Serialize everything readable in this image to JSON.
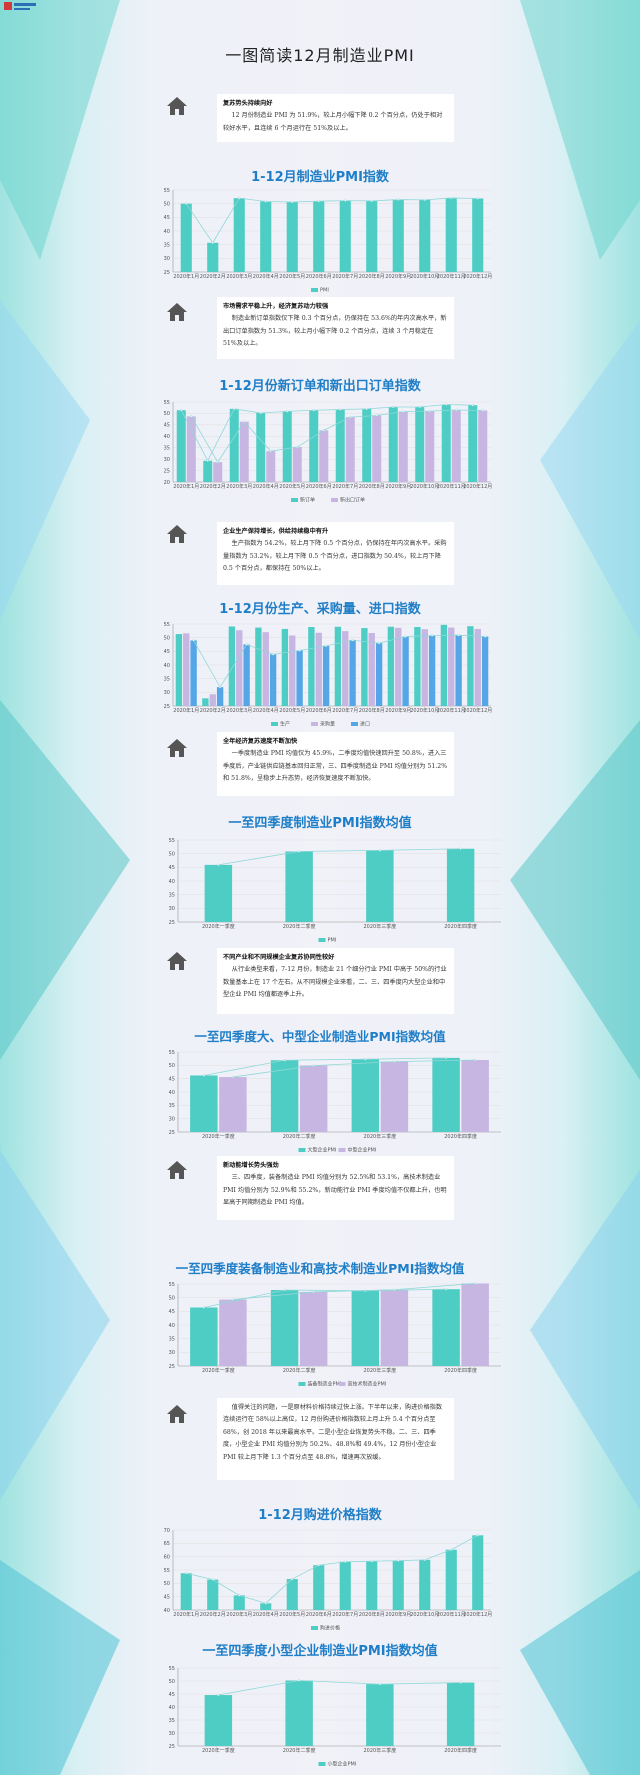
{
  "page_title": "一图简读12月制造业PMI",
  "colors": {
    "teal": "#4ecdc4",
    "lavender": "#c7b5e2",
    "blue": "#55a6e6",
    "title_blue": "#1f7ec8",
    "line": "#8fd8d8"
  },
  "notes": [
    {
      "heading": "复苏势头持续向好",
      "paragraphs": [
        "12 月份制造业 PMI 为 51.9%，较上月小幅下降 0.2 个百分点，仍处于相对较好水平，且连续 6 个月运行在 51%及以上。"
      ]
    },
    {
      "heading": "市场需求平稳上升，经济复苏动力较强",
      "paragraphs": [
        "制造业新订单指数仅下降 0.3 个百分点，仍保持在 53.6%的年内次高水平，新出口订单指数为 51.3%，较上月小幅下降 0.2 个百分点，连续 3 个月稳定在 51%及以上。"
      ]
    },
    {
      "heading": "企业生产保持增长，供给持续稳中有升",
      "paragraphs": [
        "生产指数为 54.2%，较上月下降 0.5 个百分点，仍保持在年内次高水平。采购量指数为 53.2%，较上月下降 0.5 个百分点，进口指数为 50.4%，较上月下降 0.5 个百分点，都保持在 50%以上。"
      ]
    },
    {
      "heading": "全年经济复苏速度不断加快",
      "paragraphs": [
        "一季度制造业 PMI 均值仅为 45.9%，二季度均值快速回升至 50.8%，进入三季度后，产业链供应链基本回归正常，三、四季度制造业 PMI 均值分别为 51.2%和 51.8%，呈稳步上升态势，经济恢复速度不断加快。"
      ]
    },
    {
      "heading": "不同产业和不同规模企业复苏协同性较好",
      "paragraphs": [
        "从行业类型来看，7-12 月份，制造业 21 个细分行业 PMI 中高于 50%的行业数量基本上在 17 个左右。从不同规模企业来看，二、三、四季度内大型企业和中型企业 PMI 均值都逐季上升。"
      ]
    },
    {
      "heading": "新动能增长势头强劲",
      "paragraphs": [
        "三、四季度，装备制造业 PMI 均值分别为 52.5%和 53.1%，高技术制造业 PMI 均值分别为 52.9%和 55.2%，新动能行业 PMI 季度均值不仅都上升，也明显高于同期制造业 PMI 均值。"
      ]
    },
    {
      "heading": "",
      "paragraphs": [
        "值得关注的问题，一是原材料价格持续过快上涨。下半年以来，购进价格指数连续运行在 58%以上高位，12 月份购进价格指数较上月上升 5.4 个百分点至 68%，创 2018 年以来最高水平。二是小型企业恢复势头不稳。二、三、四季度，小型企业 PMI 均值分别为 50.2%、48.8%和 49.4%，12 月份小型企业 PMI 较上月下降 1.3 个百分点至 48.8%，增速再次放缓。"
      ]
    }
  ],
  "chart_titles": [
    "1-12月制造业PMI指数",
    "1-12月份新订单和新出口订单指数",
    "1-12月份生产、采购量、进口指数",
    "一至四季度制造业PMI指数均值",
    "一至四季度大、中型企业制造业PMI指数均值",
    "一至四季度装备制造业和高技术制造业PMI指数均值",
    "1-12月购进价格指数",
    "一至四季度小型企业制造业PMI指数均值"
  ],
  "chart_data": [
    {
      "type": "bar",
      "categories": [
        "2020年1月",
        "2020年2月",
        "2020年3月",
        "2020年4月",
        "2020年5月",
        "2020年6月",
        "2020年7月",
        "2020年8月",
        "2020年9月",
        "2020年10月",
        "2020年11月",
        "2020年12月"
      ],
      "series": [
        {
          "name": "PMI",
          "values": [
            50.0,
            35.7,
            52.0,
            50.8,
            50.6,
            50.9,
            51.1,
            51.0,
            51.5,
            51.4,
            52.1,
            51.9
          ]
        }
      ],
      "ylim": [
        25,
        55
      ],
      "yticks": [
        25,
        30,
        35,
        40,
        45,
        50,
        55
      ],
      "legend": "bottom"
    },
    {
      "type": "bar",
      "categories": [
        "2020年1月",
        "2020年2月",
        "2020年3月",
        "2020年4月",
        "2020年5月",
        "2020年6月",
        "2020年7月",
        "2020年8月",
        "2020年9月",
        "2020年10月",
        "2020年11月",
        "2020年12月"
      ],
      "series": [
        {
          "name": "新订单",
          "values": [
            51.4,
            29.3,
            52.0,
            50.2,
            50.9,
            51.4,
            51.7,
            52.0,
            52.8,
            52.8,
            53.9,
            53.6
          ]
        },
        {
          "name": "新出口订单",
          "values": [
            48.7,
            28.7,
            46.4,
            33.5,
            35.3,
            42.6,
            48.4,
            49.1,
            50.8,
            51.0,
            51.5,
            51.3
          ]
        }
      ],
      "ylim": [
        20,
        55
      ],
      "yticks": [
        20,
        25,
        30,
        35,
        40,
        45,
        50,
        55
      ],
      "legend": "bottom"
    },
    {
      "type": "bar",
      "categories": [
        "2020年1月",
        "2020年2月",
        "2020年3月",
        "2020年4月",
        "2020年5月",
        "2020年6月",
        "2020年7月",
        "2020年8月",
        "2020年9月",
        "2020年10月",
        "2020年11月",
        "2020年12月"
      ],
      "series": [
        {
          "name": "生产",
          "values": [
            51.3,
            27.8,
            54.1,
            53.7,
            53.2,
            53.9,
            54.0,
            53.5,
            54.0,
            53.9,
            54.7,
            54.2
          ]
        },
        {
          "name": "采购量",
          "values": [
            51.6,
            29.3,
            52.7,
            52.0,
            50.8,
            51.8,
            52.4,
            51.7,
            53.6,
            53.1,
            53.7,
            53.2
          ]
        },
        {
          "name": "进口",
          "values": [
            49.0,
            31.9,
            47.5,
            43.9,
            45.3,
            47.0,
            49.1,
            48.0,
            50.4,
            50.8,
            50.9,
            50.4
          ]
        }
      ],
      "ylim": [
        25,
        55
      ],
      "yticks": [
        25,
        30,
        35,
        40,
        45,
        50,
        55
      ],
      "legend": "bottom"
    },
    {
      "type": "bar",
      "categories": [
        "2020年一季度",
        "2020年二季度",
        "2020年三季度",
        "2020年四季度"
      ],
      "series": [
        {
          "name": "PMI",
          "values": [
            45.9,
            50.8,
            51.2,
            51.8
          ]
        }
      ],
      "ylim": [
        25,
        55
      ],
      "yticks": [
        25,
        30,
        35,
        40,
        45,
        50,
        55
      ],
      "legend": "bottom"
    },
    {
      "type": "bar",
      "categories": [
        "2020年一季度",
        "2020年二季度",
        "2020年三季度",
        "2020年四季度"
      ],
      "series": [
        {
          "name": "大型企业PMI",
          "values": [
            46.2,
            51.9,
            52.3,
            52.8
          ]
        },
        {
          "name": "中型企业PMI",
          "values": [
            45.6,
            49.9,
            51.4,
            52.0
          ]
        }
      ],
      "ylim": [
        25,
        55
      ],
      "yticks": [
        25,
        30,
        35,
        40,
        45,
        50,
        55
      ],
      "legend": "bottom"
    },
    {
      "type": "bar",
      "categories": [
        "2020年一季度",
        "2020年二季度",
        "2020年三季度",
        "2020年四季度"
      ],
      "series": [
        {
          "name": "装备制造业PMI",
          "values": [
            46.4,
            52.8,
            52.5,
            53.1
          ]
        },
        {
          "name": "高技术制造业PMI",
          "values": [
            49.3,
            52.1,
            52.9,
            55.2
          ]
        }
      ],
      "ylim": [
        25,
        55
      ],
      "yticks": [
        25,
        30,
        35,
        40,
        45,
        50,
        55
      ],
      "legend": "bottom"
    },
    {
      "type": "bar",
      "categories": [
        "2020年1月",
        "2020年2月",
        "2020年3月",
        "2020年4月",
        "2020年5月",
        "2020年6月",
        "2020年7月",
        "2020年8月",
        "2020年9月",
        "2020年10月",
        "2020年11月",
        "2020年12月"
      ],
      "series": [
        {
          "name": "购进价格",
          "values": [
            53.8,
            51.4,
            45.5,
            42.5,
            51.6,
            56.8,
            58.1,
            58.3,
            58.5,
            58.8,
            62.6,
            68.0
          ]
        }
      ],
      "ylim": [
        40,
        70
      ],
      "yticks": [
        40,
        45,
        50,
        55,
        60,
        65,
        70
      ],
      "legend": "bottom"
    },
    {
      "type": "bar",
      "categories": [
        "2020年一季度",
        "2020年二季度",
        "2020年三季度",
        "2020年四季度"
      ],
      "series": [
        {
          "name": "小型企业PMI",
          "values": [
            44.6,
            50.2,
            48.8,
            49.4
          ]
        }
      ],
      "ylim": [
        25,
        55
      ],
      "yticks": [
        25,
        30,
        35,
        40,
        45,
        50,
        55
      ],
      "legend": "bottom"
    }
  ]
}
